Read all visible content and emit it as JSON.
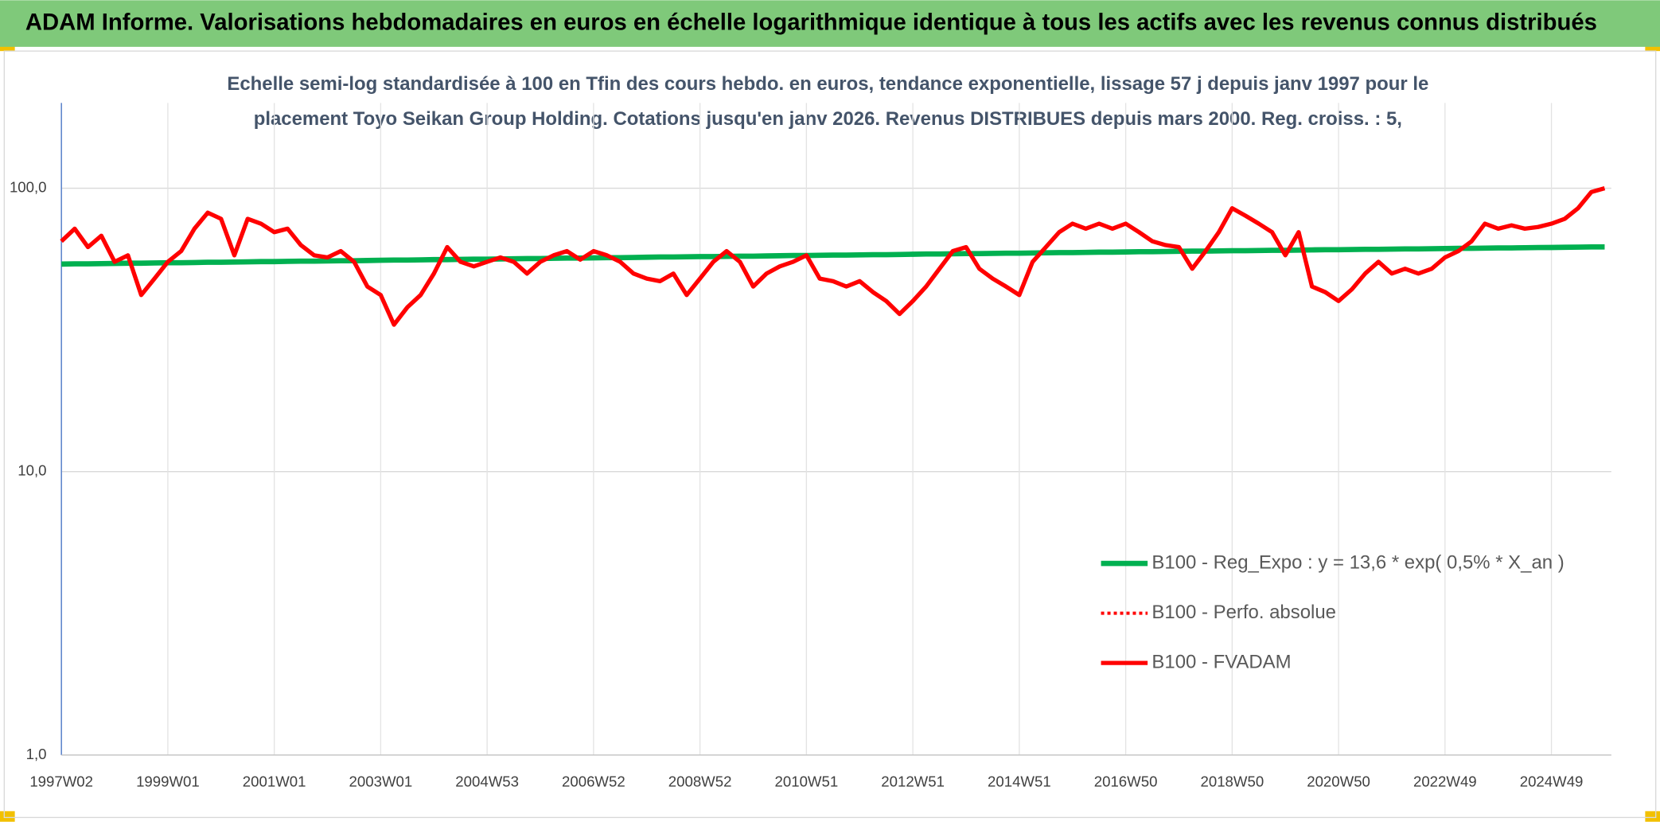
{
  "chart_data": {
    "type": "line",
    "header": "ADAM Informe. Valorisations hebdomadaires en euros en échelle logarithmique identique à tous les actifs avec les revenus connus distribués",
    "title": [
      "Echelle semi-log standardisée à 100 en Tfin des cours hebdo. en euros, tendance exponentielle, lissage 57 j depuis janv 1997 pour le",
      "placement Toyo Seikan Group Holding. Cotations jusqu'en janv 2026. Revenus DISTRIBUES depuis mars 2000. Reg. croiss. : 5,"
    ],
    "log_y": true,
    "grid": true,
    "legend": "right",
    "ylim": [
      1,
      200
    ],
    "yticks": [
      {
        "value": 1,
        "label": "1,0"
      },
      {
        "value": 10,
        "label": "10,0"
      },
      {
        "value": 100,
        "label": "100,0"
      }
    ],
    "categories": [
      "1997W02",
      null,
      null,
      null,
      null,
      null,
      null,
      null,
      "1999W01",
      null,
      null,
      null,
      null,
      null,
      null,
      null,
      "2001W01",
      null,
      null,
      null,
      null,
      null,
      null,
      null,
      "2003W01",
      null,
      null,
      null,
      null,
      null,
      null,
      null,
      "2004W53",
      null,
      null,
      null,
      null,
      null,
      null,
      null,
      "2006W52",
      null,
      null,
      null,
      null,
      null,
      null,
      null,
      "2008W52",
      null,
      null,
      null,
      null,
      null,
      null,
      null,
      "2010W51",
      null,
      null,
      null,
      null,
      null,
      null,
      null,
      "2012W51",
      null,
      null,
      null,
      null,
      null,
      null,
      null,
      "2014W51",
      null,
      null,
      null,
      null,
      null,
      null,
      null,
      "2016W50",
      null,
      null,
      null,
      null,
      null,
      null,
      null,
      "2018W50",
      null,
      null,
      null,
      null,
      null,
      null,
      null,
      "2020W50",
      null,
      null,
      null,
      null,
      null,
      null,
      null,
      "2022W49",
      null,
      null,
      null,
      null,
      null,
      null,
      null,
      "2024W49",
      null,
      null,
      null,
      null
    ],
    "series": [
      {
        "name": "B100 - Reg_Expo : y = 13,6 * exp( 0,5% *  X_an )",
        "color": "#00b050",
        "width": 5,
        "dotted": false,
        "values": [
          54.0,
          54.1,
          54.1,
          54.2,
          54.3,
          54.4,
          54.4,
          54.5,
          54.6,
          54.6,
          54.7,
          54.8,
          54.8,
          54.9,
          55.0,
          55.1,
          55.1,
          55.2,
          55.3,
          55.3,
          55.4,
          55.5,
          55.5,
          55.6,
          55.7,
          55.8,
          55.8,
          55.9,
          56.0,
          56.0,
          56.1,
          56.2,
          56.2,
          56.3,
          56.4,
          56.5,
          56.5,
          56.6,
          56.7,
          56.7,
          56.8,
          56.9,
          56.9,
          57.0,
          57.1,
          57.2,
          57.2,
          57.3,
          57.4,
          57.4,
          57.5,
          57.6,
          57.6,
          57.7,
          57.8,
          57.9,
          57.9,
          58.0,
          58.1,
          58.1,
          58.2,
          58.3,
          58.3,
          58.4,
          58.5,
          58.6,
          58.6,
          58.7,
          58.8,
          58.8,
          58.9,
          59.0,
          59.0,
          59.1,
          59.2,
          59.3,
          59.3,
          59.4,
          59.5,
          59.5,
          59.6,
          59.7,
          59.7,
          59.8,
          59.9,
          60.0,
          60.0,
          60.1,
          60.2,
          60.2,
          60.3,
          60.4,
          60.4,
          60.5,
          60.6,
          60.7,
          60.7,
          60.8,
          60.9,
          60.9,
          61.0,
          61.1,
          61.1,
          61.2,
          61.3,
          61.4,
          61.4,
          61.5,
          61.6,
          61.6,
          61.7,
          61.8,
          61.8,
          61.9,
          62.0,
          62.1,
          62.1
        ]
      },
      {
        "name": "B100 - Perfo. absolue",
        "color": "#ff0000",
        "width": 3,
        "dotted": true,
        "values": [
          65,
          72,
          62,
          68,
          55,
          58,
          42,
          48,
          55,
          60,
          72,
          82,
          78,
          58,
          78,
          75,
          70,
          72,
          63,
          58,
          57,
          60,
          55,
          45,
          42,
          33,
          38,
          42,
          50,
          62,
          55,
          53,
          55,
          57,
          55,
          50,
          55,
          58,
          60,
          56,
          60,
          58,
          55,
          50,
          48,
          47,
          50,
          42,
          48,
          55,
          60,
          55,
          45,
          50,
          53,
          55,
          58,
          48,
          47,
          45,
          47,
          43,
          40,
          36,
          40,
          45,
          52,
          60,
          62,
          52,
          48,
          45,
          42,
          55,
          62,
          70,
          75,
          72,
          75,
          72,
          75,
          70,
          65,
          63,
          62,
          52,
          60,
          70,
          85,
          80,
          75,
          70,
          58,
          70,
          45,
          43,
          40,
          44,
          50,
          55,
          50,
          52,
          50,
          52,
          57,
          60,
          65,
          75,
          72,
          74,
          72,
          73,
          75,
          78,
          85,
          97,
          100
        ]
      },
      {
        "name": "B100 - FVADAM",
        "color": "#ff0000",
        "width": 4,
        "dotted": false,
        "values": [
          65,
          72,
          62,
          68,
          55,
          58,
          42,
          48,
          55,
          60,
          72,
          82,
          78,
          58,
          78,
          75,
          70,
          72,
          63,
          58,
          57,
          60,
          55,
          45,
          42,
          33,
          38,
          42,
          50,
          62,
          55,
          53,
          55,
          57,
          55,
          50,
          55,
          58,
          60,
          56,
          60,
          58,
          55,
          50,
          48,
          47,
          50,
          42,
          48,
          55,
          60,
          55,
          45,
          50,
          53,
          55,
          58,
          48,
          47,
          45,
          47,
          43,
          40,
          36,
          40,
          45,
          52,
          60,
          62,
          52,
          48,
          45,
          42,
          55,
          62,
          70,
          75,
          72,
          75,
          72,
          75,
          70,
          65,
          63,
          62,
          52,
          60,
          70,
          85,
          80,
          75,
          70,
          58,
          70,
          45,
          43,
          40,
          44,
          50,
          55,
          50,
          52,
          50,
          52,
          57,
          60,
          65,
          75,
          72,
          74,
          72,
          73,
          75,
          78,
          85,
          97,
          100
        ]
      }
    ]
  }
}
